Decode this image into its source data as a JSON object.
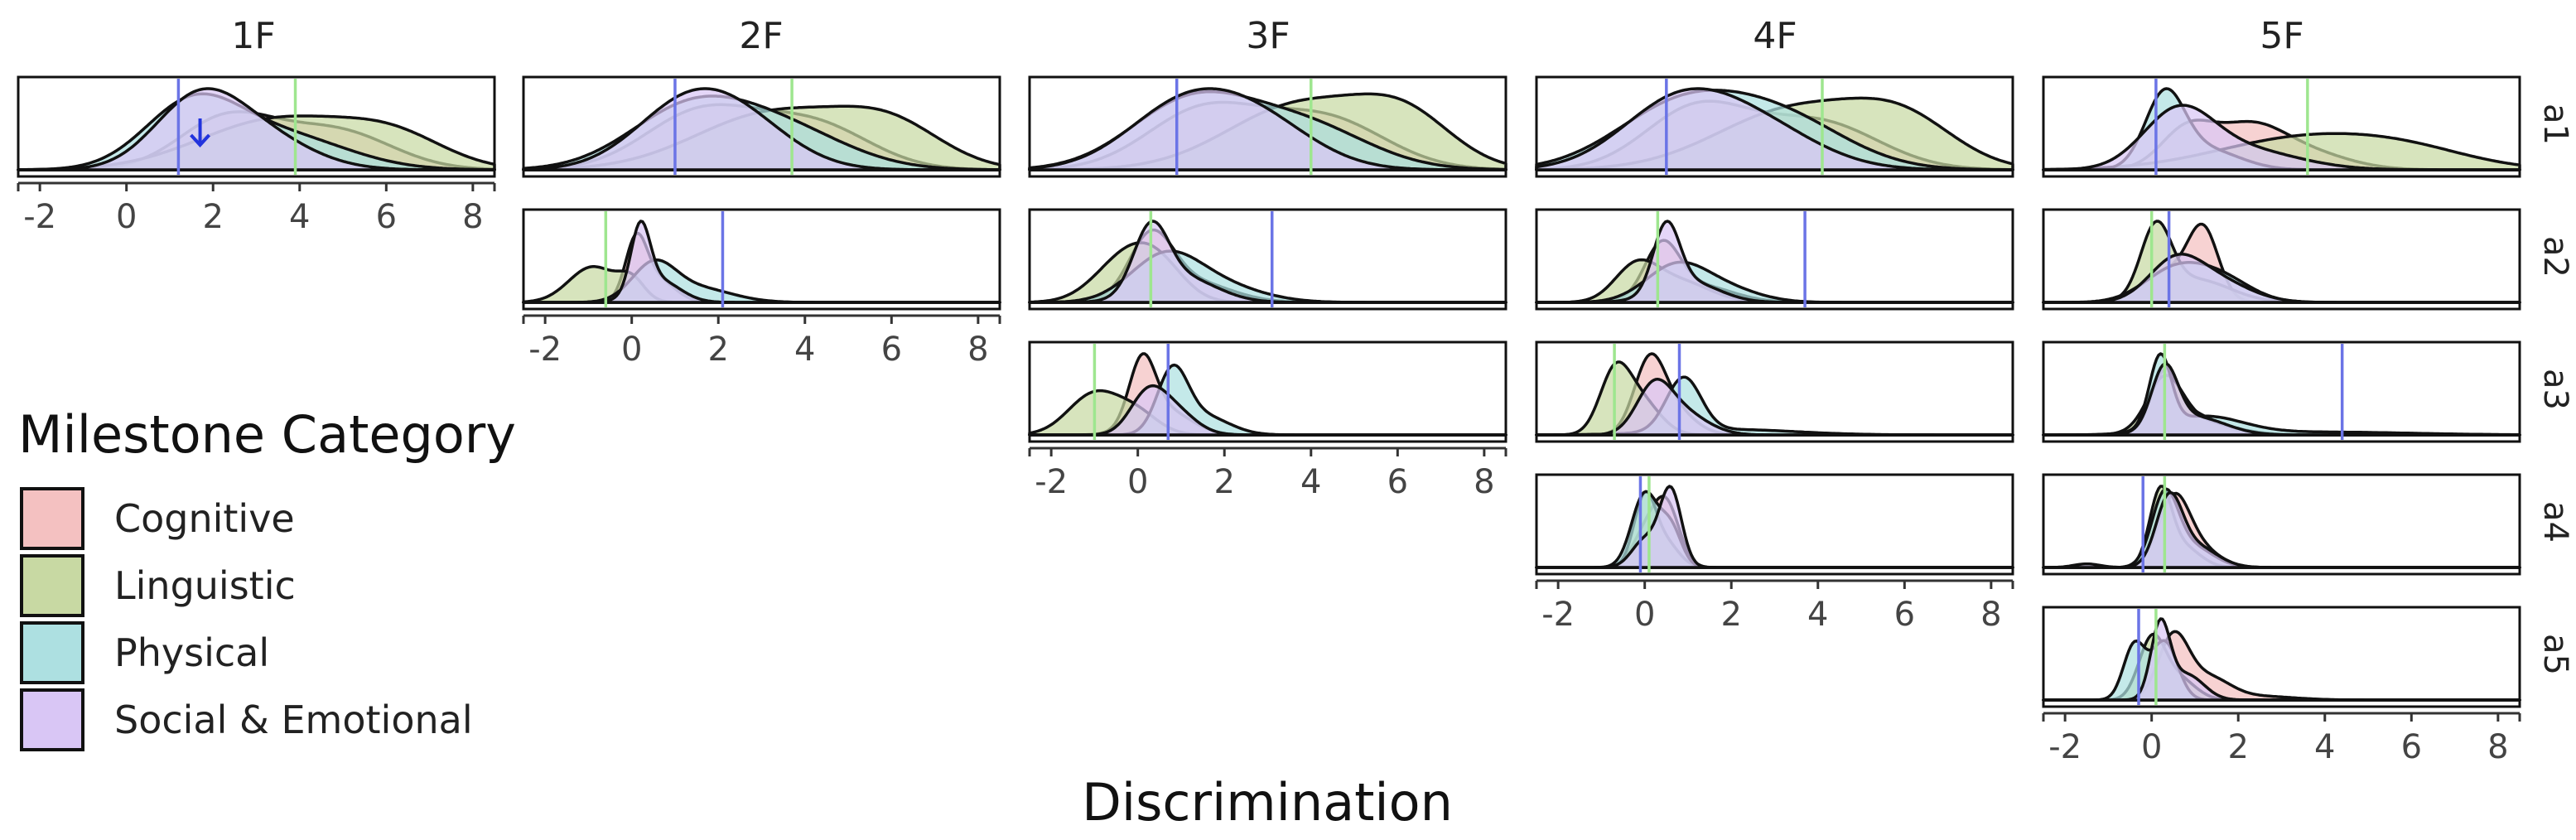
{
  "chart_data": {
    "type": "area",
    "plot_kind": "faceted density (ridgeline) plot",
    "x_axis_title": "Discrimination",
    "x_ticks": [
      -2,
      0,
      2,
      4,
      6,
      8
    ],
    "xlim": [
      -2.5,
      8.5
    ],
    "columns": [
      "1F",
      "2F",
      "3F",
      "4F",
      "5F"
    ],
    "rows": [
      "a1",
      "a2",
      "a3",
      "a4",
      "a5"
    ],
    "legend": {
      "title": "Milestone Category",
      "items": [
        {
          "label": "Cognitive",
          "color": "#f4c1c1"
        },
        {
          "label": "Linguistic",
          "color": "#c8d9a3"
        },
        {
          "label": "Physical",
          "color": "#ade0e1"
        },
        {
          "label": "Social & Emotional",
          "color": "#d9c6f5"
        }
      ]
    },
    "reference_lines": {
      "blue": "#6b74e6",
      "green": "#9ee68f"
    },
    "arrow_annotation": {
      "panel": "1F-a1",
      "x": 1.7,
      "color": "#2233dd"
    },
    "panels": [
      {
        "col": "1F",
        "row": "a1",
        "blue_line": 1.2,
        "green_line": 3.9,
        "series": {
          "Cognitive": [
            [
              2.3,
              1.1,
              0.45
            ],
            [
              4.8,
              1.3,
              0.35
            ]
          ],
          "Linguistic": [
            [
              3.5,
              1.8,
              0.45
            ],
            [
              6.2,
              1.2,
              0.25
            ]
          ],
          "Physical": [
            [
              1.5,
              1.1,
              0.55
            ],
            [
              3.6,
              1.5,
              0.3
            ]
          ],
          "Social & Emotional": [
            [
              1.6,
              1.0,
              0.55
            ],
            [
              3.0,
              1.2,
              0.3
            ]
          ]
        }
      },
      {
        "col": "2F",
        "row": "a1",
        "blue_line": 1.0,
        "green_line": 3.7,
        "series": {
          "Cognitive": [
            [
              1.6,
              1.3,
              0.45
            ],
            [
              4.2,
              1.3,
              0.35
            ]
          ],
          "Linguistic": [
            [
              3.3,
              1.8,
              0.45
            ],
            [
              6.0,
              1.2,
              0.3
            ]
          ],
          "Physical": [
            [
              1.3,
              1.4,
              0.45
            ],
            [
              3.5,
              1.5,
              0.3
            ]
          ],
          "Social & Emotional": [
            [
              1.2,
              1.2,
              0.45
            ],
            [
              2.6,
              1.2,
              0.3
            ]
          ]
        }
      },
      {
        "col": "3F",
        "row": "a1",
        "blue_line": 0.9,
        "green_line": 4.0,
        "series": {
          "Cognitive": [
            [
              1.5,
              1.3,
              0.4
            ],
            [
              4.3,
              1.4,
              0.35
            ]
          ],
          "Linguistic": [
            [
              3.8,
              1.7,
              0.45
            ],
            [
              6.2,
              1.1,
              0.3
            ]
          ],
          "Physical": [
            [
              1.2,
              1.4,
              0.45
            ],
            [
              3.8,
              1.5,
              0.3
            ]
          ],
          "Social & Emotional": [
            [
              1.0,
              1.3,
              0.4
            ],
            [
              2.8,
              1.3,
              0.3
            ]
          ]
        }
      },
      {
        "col": "4F",
        "row": "a1",
        "blue_line": 0.5,
        "green_line": 4.1,
        "series": {
          "Cognitive": [
            [
              1.2,
              1.2,
              0.45
            ],
            [
              4.0,
              1.4,
              0.35
            ]
          ],
          "Linguistic": [
            [
              3.5,
              1.8,
              0.45
            ],
            [
              6.0,
              1.2,
              0.3
            ]
          ],
          "Physical": [
            [
              0.8,
              1.5,
              0.45
            ],
            [
              3.2,
              1.5,
              0.35
            ]
          ],
          "Social & Emotional": [
            [
              0.7,
              1.3,
              0.45
            ],
            [
              2.6,
              1.4,
              0.3
            ]
          ]
        }
      },
      {
        "col": "5F",
        "row": "a1",
        "blue_line": 0.1,
        "green_line": 3.6,
        "series": {
          "Cognitive": [
            [
              0.8,
              0.6,
              0.55
            ],
            [
              2.2,
              0.8,
              0.55
            ],
            [
              3.5,
              1.0,
              0.25
            ]
          ],
          "Linguistic": [
            [
              3.5,
              2.0,
              0.45
            ],
            [
              6.0,
              1.5,
              0.2
            ]
          ],
          "Physical": [
            [
              0.3,
              0.45,
              1.0
            ],
            [
              1.2,
              0.8,
              0.3
            ]
          ],
          "Social & Emotional": [
            [
              0.6,
              0.8,
              0.75
            ],
            [
              2.0,
              1.3,
              0.3
            ]
          ]
        }
      },
      {
        "col": "2F",
        "row": "a2",
        "blue_line": 2.1,
        "green_line": -0.6,
        "series": {
          "Cognitive": [
            [
              0.1,
              0.25,
              0.9
            ],
            [
              0.6,
              0.4,
              0.35
            ]
          ],
          "Linguistic": [
            [
              -0.9,
              0.55,
              0.55
            ],
            [
              0.0,
              0.3,
              0.3
            ]
          ],
          "Physical": [
            [
              0.5,
              0.5,
              0.55
            ],
            [
              1.5,
              0.8,
              0.22
            ]
          ],
          "Social & Emotional": [
            [
              0.2,
              0.22,
              1.0
            ],
            [
              0.6,
              0.5,
              0.35
            ]
          ]
        }
      },
      {
        "col": "3F",
        "row": "a2",
        "blue_line": 3.1,
        "green_line": 0.3,
        "series": {
          "Cognitive": [
            [
              0.3,
              0.5,
              0.7
            ],
            [
              1.2,
              0.9,
              0.25
            ]
          ],
          "Linguistic": [
            [
              -0.3,
              0.7,
              0.5
            ],
            [
              0.5,
              0.6,
              0.35
            ]
          ],
          "Physical": [
            [
              0.6,
              0.8,
              0.5
            ],
            [
              1.8,
              1.0,
              0.2
            ]
          ],
          "Social & Emotional": [
            [
              0.3,
              0.4,
              0.75
            ],
            [
              1.0,
              0.8,
              0.3
            ]
          ]
        }
      },
      {
        "col": "4F",
        "row": "a2",
        "blue_line": 3.7,
        "green_line": 0.3,
        "series": {
          "Cognitive": [
            [
              0.4,
              0.4,
              0.75
            ],
            [
              1.2,
              0.8,
              0.25
            ]
          ],
          "Linguistic": [
            [
              -0.2,
              0.5,
              0.5
            ],
            [
              0.8,
              0.7,
              0.3
            ]
          ],
          "Physical": [
            [
              0.7,
              0.7,
              0.5
            ],
            [
              1.8,
              0.8,
              0.2
            ]
          ],
          "Social & Emotional": [
            [
              0.5,
              0.3,
              0.95
            ],
            [
              1.0,
              0.7,
              0.3
            ]
          ]
        }
      },
      {
        "col": "5F",
        "row": "a2",
        "blue_line": 0.4,
        "green_line": 0.0,
        "series": {
          "Cognitive": [
            [
              1.2,
              0.35,
              0.85
            ],
            [
              0.4,
              0.6,
              0.4
            ]
          ],
          "Linguistic": [
            [
              0.1,
              0.35,
              0.9
            ],
            [
              1.0,
              0.8,
              0.3
            ]
          ],
          "Physical": [
            [
              0.5,
              0.7,
              0.4
            ],
            [
              1.6,
              0.7,
              0.3
            ]
          ],
          "Social & Emotional": [
            [
              0.5,
              0.6,
              0.45
            ],
            [
              1.4,
              0.8,
              0.3
            ]
          ]
        }
      },
      {
        "col": "3F",
        "row": "a3",
        "blue_line": 0.7,
        "green_line": -1.0,
        "series": {
          "Cognitive": [
            [
              0.1,
              0.3,
              1.0
            ],
            [
              0.6,
              0.6,
              0.4
            ]
          ],
          "Linguistic": [
            [
              -1.0,
              0.6,
              0.65
            ],
            [
              0.0,
              0.5,
              0.3
            ]
          ],
          "Physical": [
            [
              0.8,
              0.35,
              0.95
            ],
            [
              1.5,
              0.6,
              0.3
            ]
          ],
          "Social & Emotional": [
            [
              0.2,
              0.4,
              0.55
            ],
            [
              0.8,
              0.5,
              0.4
            ]
          ]
        }
      },
      {
        "col": "4F",
        "row": "a3",
        "blue_line": 0.8,
        "green_line": -0.7,
        "series": {
          "Cognitive": [
            [
              0.1,
              0.35,
              0.95
            ],
            [
              0.6,
              0.5,
              0.4
            ]
          ],
          "Linguistic": [
            [
              -0.7,
              0.35,
              0.85
            ],
            [
              -0.1,
              0.45,
              0.5
            ]
          ],
          "Physical": [
            [
              0.9,
              0.4,
              0.8
            ],
            [
              2.0,
              1.5,
              0.08
            ]
          ],
          "Social & Emotional": [
            [
              0.2,
              0.4,
              0.6
            ],
            [
              0.8,
              0.6,
              0.35
            ]
          ]
        }
      },
      {
        "col": "5F",
        "row": "a3",
        "blue_line": 4.4,
        "green_line": 0.3,
        "series": {
          "Cognitive": [
            [
              0.3,
              0.3,
              0.75
            ],
            [
              0.9,
              0.6,
              0.3
            ]
          ],
          "Linguistic": [
            [
              0.3,
              0.4,
              0.7
            ],
            [
              1.0,
              0.8,
              0.2
            ]
          ],
          "Physical": [
            [
              0.2,
              0.25,
              1.0
            ],
            [
              1.2,
              0.9,
              0.25
            ],
            [
              4.0,
              2.0,
              0.04
            ]
          ],
          "Social & Emotional": [
            [
              0.3,
              0.3,
              0.85
            ],
            [
              1.0,
              0.7,
              0.25
            ]
          ]
        }
      },
      {
        "col": "4F",
        "row": "a4",
        "blue_line": -0.1,
        "green_line": 0.1,
        "series": {
          "Cognitive": [
            [
              0.5,
              0.3,
              0.8
            ],
            [
              0.0,
              0.3,
              0.4
            ]
          ],
          "Linguistic": [
            [
              0.0,
              0.25,
              0.9
            ],
            [
              0.5,
              0.3,
              0.3
            ]
          ],
          "Physical": [
            [
              0.0,
              0.3,
              0.95
            ],
            [
              0.6,
              0.25,
              0.5
            ]
          ],
          "Social & Emotional": [
            [
              0.6,
              0.25,
              1.0
            ],
            [
              0.0,
              0.3,
              0.35
            ]
          ]
        }
      },
      {
        "col": "5F",
        "row": "a4",
        "blue_line": -0.2,
        "green_line": 0.3,
        "series": {
          "Cognitive": [
            [
              0.5,
              0.35,
              0.85
            ],
            [
              1.0,
              0.5,
              0.3
            ]
          ],
          "Linguistic": [
            [
              0.2,
              0.25,
              1.0
            ],
            [
              0.7,
              0.4,
              0.3
            ]
          ],
          "Physical": [
            [
              0.3,
              0.3,
              0.95
            ],
            [
              0.9,
              0.5,
              0.3
            ]
          ],
          "Social & Emotional": [
            [
              0.4,
              0.3,
              0.9
            ],
            [
              1.0,
              0.5,
              0.3
            ],
            [
              -1.5,
              0.3,
              0.05
            ]
          ]
        }
      },
      {
        "col": "5F",
        "row": "a5",
        "blue_line": -0.3,
        "green_line": 0.1,
        "series": {
          "Cognitive": [
            [
              0.5,
              0.35,
              0.85
            ],
            [
              1.3,
              0.5,
              0.3
            ],
            [
              2.5,
              0.8,
              0.05
            ]
          ],
          "Linguistic": [
            [
              0.0,
              0.3,
              0.8
            ],
            [
              0.6,
              0.4,
              0.3
            ]
          ],
          "Physical": [
            [
              -0.4,
              0.25,
              0.75
            ],
            [
              0.3,
              0.3,
              0.8
            ]
          ],
          "Social & Emotional": [
            [
              0.2,
              0.22,
              1.0
            ],
            [
              0.8,
              0.4,
              0.35
            ]
          ]
        }
      }
    ]
  }
}
